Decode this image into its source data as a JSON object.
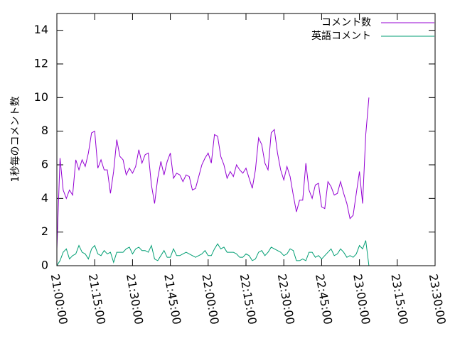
{
  "chart_data": {
    "type": "line",
    "title": "",
    "xlabel": "",
    "ylabel": "1秒毎のコメント数",
    "ylim": [
      0,
      15
    ],
    "yticks": [
      0,
      2,
      4,
      6,
      8,
      10,
      12,
      14
    ],
    "xlim": [
      "21:00:00",
      "23:30:00"
    ],
    "xticks": [
      "21:00:00",
      "21:15:00",
      "21:30:00",
      "21:45:00",
      "22:00:00",
      "22:15:00",
      "22:30:00",
      "22:45:00",
      "23:00:00",
      "23:15:00",
      "23:30:00"
    ],
    "legend": "top-right",
    "grid": false,
    "x_step_seconds": 75,
    "series": [
      {
        "name": "コメント数",
        "color": "#9400d3",
        "values": [
          1.0,
          6.4,
          4.5,
          4.0,
          4.5,
          4.2,
          6.3,
          5.7,
          6.3,
          5.9,
          6.7,
          7.9,
          8.0,
          5.8,
          6.3,
          5.7,
          5.7,
          4.3,
          5.6,
          7.5,
          6.5,
          6.3,
          5.4,
          5.8,
          5.5,
          5.9,
          6.9,
          6.1,
          6.6,
          6.7,
          4.8,
          3.7,
          5.2,
          6.2,
          5.4,
          6.2,
          6.7,
          5.2,
          5.5,
          5.4,
          5.0,
          5.4,
          5.3,
          4.5,
          4.6,
          5.3,
          6.0,
          6.4,
          6.7,
          6.1,
          7.8,
          7.7,
          6.5,
          6.0,
          5.2,
          5.6,
          5.3,
          6.0,
          5.7,
          5.5,
          5.8,
          5.2,
          4.6,
          5.7,
          7.6,
          7.2,
          6.1,
          5.7,
          7.9,
          8.1,
          6.7,
          5.7,
          5.1,
          5.9,
          5.3,
          4.2,
          3.2,
          3.9,
          3.9,
          6.1,
          4.5,
          4.0,
          4.8,
          4.9,
          3.5,
          3.4,
          5.0,
          4.7,
          4.2,
          4.3,
          5.0,
          4.3,
          3.7,
          2.8,
          3.0,
          4.3,
          5.6,
          3.7,
          7.8,
          10.0
        ]
      },
      {
        "name": "英語コメント",
        "color": "#009e73",
        "values": [
          0.0,
          0.3,
          0.8,
          1.0,
          0.4,
          0.6,
          0.7,
          1.2,
          0.8,
          0.7,
          0.4,
          1.0,
          1.2,
          0.7,
          0.6,
          0.9,
          0.7,
          0.8,
          0.2,
          0.8,
          0.8,
          0.8,
          1.0,
          1.1,
          0.7,
          1.0,
          1.1,
          0.9,
          0.9,
          0.8,
          1.2,
          0.4,
          0.3,
          0.6,
          0.9,
          0.5,
          0.5,
          1.0,
          0.6,
          0.6,
          0.7,
          0.8,
          0.7,
          0.6,
          0.5,
          0.6,
          0.7,
          0.9,
          0.6,
          0.6,
          1.0,
          1.3,
          1.0,
          1.1,
          0.8,
          0.8,
          0.8,
          0.7,
          0.5,
          0.5,
          0.7,
          0.6,
          0.3,
          0.4,
          0.8,
          0.9,
          0.6,
          0.8,
          1.1,
          1.0,
          0.9,
          0.8,
          0.6,
          0.7,
          1.0,
          0.9,
          0.3,
          0.3,
          0.4,
          0.3,
          0.8,
          0.8,
          0.5,
          0.6,
          0.4,
          0.6,
          0.8,
          1.0,
          0.6,
          0.7,
          1.0,
          0.8,
          0.5,
          0.6,
          0.5,
          0.7,
          1.2,
          1.0,
          1.5,
          0.0
        ]
      }
    ]
  }
}
